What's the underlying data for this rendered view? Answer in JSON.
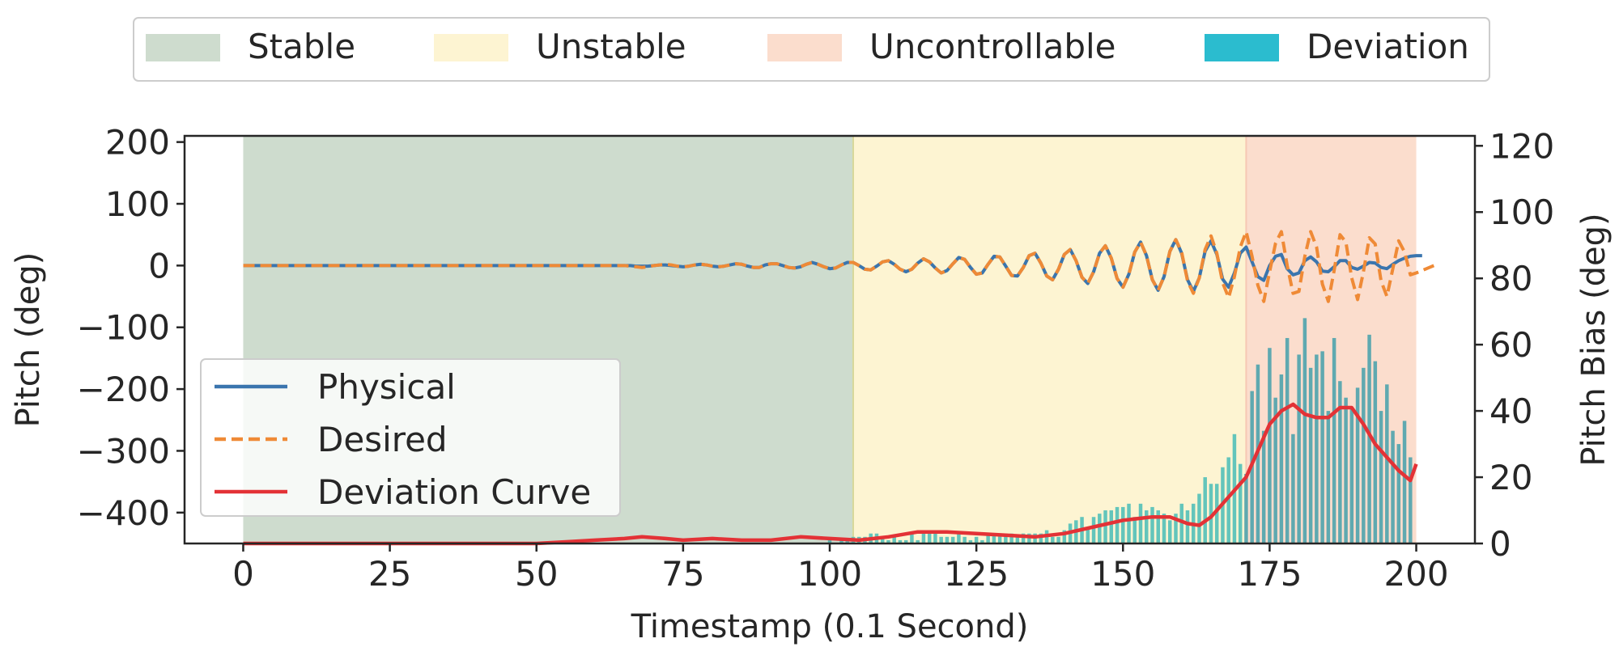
{
  "legend_top": {
    "items": [
      {
        "label": "Stable",
        "color": "#cedcce"
      },
      {
        "label": "Unstable",
        "color": "#fdf4d2"
      },
      {
        "label": "Uncontrollable",
        "color": "#fbddcd"
      },
      {
        "label": "Deviation",
        "color": "#2bbccf"
      }
    ]
  },
  "legend_lines": {
    "items": [
      {
        "label": "Physical",
        "color": "#3a75ae",
        "style": "solid"
      },
      {
        "label": "Desired",
        "color": "#ef8a36",
        "style": "dashed"
      },
      {
        "label": "Deviation Curve",
        "color": "#e33236",
        "style": "solid"
      }
    ]
  },
  "chart_data": {
    "type": "line",
    "xlabel": "Timestamp (0.1 Second)",
    "ylabel": "Pitch (deg)",
    "y2label": "Pitch Bias (deg)",
    "xlim": [
      -10,
      210
    ],
    "ylim": [
      -450,
      210
    ],
    "y2lim": [
      0,
      123
    ],
    "xticks": [
      0,
      25,
      50,
      75,
      100,
      125,
      150,
      175,
      200
    ],
    "xtick_labels": [
      "0",
      "25",
      "50",
      "75",
      "100",
      "125",
      "150",
      "175",
      "200"
    ],
    "yticks": [
      200,
      100,
      0,
      -100,
      -200,
      -300,
      -400
    ],
    "ytick_labels": [
      "200",
      "100",
      "0",
      "−100",
      "−200",
      "−300",
      "−400"
    ],
    "y2ticks": [
      0,
      20,
      40,
      60,
      80,
      100,
      120
    ],
    "y2tick_labels": [
      "0",
      "20",
      "40",
      "60",
      "80",
      "100",
      "120"
    ],
    "regions": [
      {
        "name": "Stable",
        "x": [
          0,
          104
        ],
        "color": "#cedcce"
      },
      {
        "name": "Unstable",
        "x": [
          104,
          171
        ],
        "color": "#fdf4d2"
      },
      {
        "name": "Uncontrollable",
        "x": [
          171,
          200
        ],
        "color": "#fbddcd"
      }
    ],
    "deviation_bars": {
      "name": "Deviation",
      "color": "#2bbccf",
      "axis": "right",
      "x_start": 100,
      "values": [
        1,
        0,
        1,
        1,
        2,
        2,
        2,
        3,
        3,
        2,
        1,
        2,
        1,
        1,
        3,
        1,
        4,
        3,
        3,
        2,
        2,
        2,
        3,
        2,
        1,
        2,
        1,
        3,
        3,
        3,
        3,
        3,
        2,
        3,
        3,
        3,
        3,
        4,
        2,
        2,
        4,
        6,
        7,
        8,
        5,
        8,
        9,
        10,
        10,
        11,
        11,
        12,
        8,
        12,
        10,
        11,
        10,
        9,
        7,
        9,
        12,
        10,
        12,
        15,
        20,
        18,
        18,
        23,
        26,
        33,
        24,
        21,
        46,
        54,
        34,
        59,
        44,
        51,
        62,
        33,
        57,
        68,
        53,
        57,
        58,
        40,
        62,
        49,
        44,
        41,
        47,
        53,
        63,
        55,
        40,
        48,
        34,
        30,
        37,
        26
      ]
    },
    "series": [
      {
        "name": "Physical",
        "axis": "left",
        "color": "#3a75ae",
        "x_start": 0,
        "values": [
          0,
          0,
          0,
          0,
          0,
          0,
          0,
          0,
          0,
          0,
          0,
          0,
          0,
          0,
          0,
          0,
          0,
          0,
          0,
          0,
          0,
          0,
          0,
          0,
          0,
          0,
          0,
          0,
          0,
          0,
          0,
          0,
          0,
          0,
          0,
          0,
          0,
          0,
          0,
          0,
          0,
          0,
          0,
          0,
          0,
          0,
          0,
          0,
          0,
          0,
          0,
          0,
          0,
          0,
          0,
          0,
          0,
          0,
          0,
          0,
          0,
          0,
          0,
          0,
          0,
          0,
          0,
          -1,
          -1,
          -1,
          0,
          1,
          1,
          0,
          -1,
          -2,
          -1,
          1,
          2,
          1,
          -1,
          -2,
          -1,
          1,
          3,
          2,
          -1,
          -3,
          -3,
          1,
          3,
          3,
          0,
          -3,
          -4,
          -2,
          2,
          5,
          2,
          -2,
          -5,
          -4,
          1,
          5,
          5,
          0,
          -6,
          -7,
          -1,
          6,
          8,
          2,
          -6,
          -10,
          -6,
          4,
          11,
          6,
          -4,
          -12,
          -8,
          3,
          13,
          10,
          -3,
          -14,
          -12,
          2,
          15,
          14,
          -1,
          -16,
          -17,
          -3,
          16,
          20,
          4,
          -17,
          -23,
          -6,
          18,
          26,
          8,
          -19,
          -29,
          -10,
          20,
          32,
          12,
          -21,
          -35,
          -14,
          22,
          38,
          16,
          -23,
          -40,
          -18,
          23,
          42,
          20,
          -23,
          -42,
          -20,
          23,
          40,
          18,
          -22,
          -35,
          -12,
          20,
          30,
          6,
          -18,
          -24,
          0,
          15,
          18,
          -5,
          -15,
          -12,
          8,
          14,
          6,
          -9,
          -10,
          -2,
          8,
          8,
          -3,
          -6,
          -1,
          5,
          4,
          -3,
          -5,
          2,
          8,
          12,
          15,
          16,
          16
        ]
      },
      {
        "name": "Desired",
        "axis": "left",
        "color": "#ef8a36",
        "x_start": 0,
        "values": [
          0,
          0,
          0,
          0,
          0,
          0,
          0,
          0,
          0,
          0,
          0,
          0,
          0,
          0,
          0,
          0,
          0,
          0,
          0,
          0,
          0,
          0,
          0,
          0,
          0,
          0,
          0,
          0,
          0,
          0,
          0,
          0,
          0,
          0,
          0,
          0,
          0,
          0,
          0,
          0,
          0,
          0,
          0,
          0,
          0,
          0,
          0,
          0,
          0,
          0,
          0,
          0,
          0,
          0,
          0,
          0,
          0,
          0,
          0,
          0,
          0,
          0,
          0,
          0,
          0,
          0,
          -1,
          -2,
          -3,
          -2,
          0,
          1,
          2,
          1,
          -1,
          -2,
          -1,
          1,
          2,
          1,
          -1,
          -2,
          -1,
          1,
          3,
          2,
          -1,
          -3,
          -3,
          1,
          3,
          3,
          0,
          -3,
          -4,
          -2,
          2,
          5,
          2,
          -2,
          -5,
          -4,
          1,
          5,
          5,
          0,
          -6,
          -7,
          -1,
          6,
          8,
          2,
          -6,
          -10,
          -6,
          4,
          11,
          6,
          -4,
          -12,
          -8,
          3,
          13,
          10,
          -3,
          -14,
          -12,
          2,
          15,
          14,
          -1,
          -16,
          -17,
          -3,
          16,
          20,
          4,
          -17,
          -23,
          -6,
          18,
          26,
          8,
          -19,
          -29,
          -10,
          20,
          32,
          12,
          -21,
          -35,
          -14,
          22,
          38,
          16,
          -23,
          -40,
          -18,
          23,
          42,
          22,
          -25,
          -45,
          -20,
          26,
          48,
          20,
          -28,
          -52,
          -18,
          30,
          55,
          15,
          -32,
          -58,
          -10,
          36,
          55,
          0,
          -45,
          -42,
          15,
          55,
          30,
          -30,
          -58,
          -8,
          50,
          38,
          -20,
          -55,
          -10,
          45,
          35,
          -25,
          -50,
          -5,
          40,
          22,
          -15,
          -12,
          -8,
          -4,
          0
        ]
      }
    ],
    "deviation_curve": {
      "name": "Deviation Curve",
      "axis": "right",
      "color": "#e33236",
      "points": [
        [
          0,
          0
        ],
        [
          50,
          0
        ],
        [
          55,
          0.5
        ],
        [
          60,
          1
        ],
        [
          65,
          1.5
        ],
        [
          68,
          2
        ],
        [
          72,
          1.5
        ],
        [
          75,
          1
        ],
        [
          80,
          1.5
        ],
        [
          85,
          1
        ],
        [
          90,
          1
        ],
        [
          95,
          2
        ],
        [
          100,
          1.5
        ],
        [
          105,
          1
        ],
        [
          110,
          2
        ],
        [
          115,
          3.5
        ],
        [
          120,
          3.5
        ],
        [
          125,
          3
        ],
        [
          130,
          2.5
        ],
        [
          135,
          2
        ],
        [
          140,
          3
        ],
        [
          145,
          5
        ],
        [
          150,
          7
        ],
        [
          155,
          8
        ],
        [
          158,
          8
        ],
        [
          161,
          6
        ],
        [
          163,
          5.5
        ],
        [
          165,
          8
        ],
        [
          167,
          12
        ],
        [
          169,
          16
        ],
        [
          171,
          20
        ],
        [
          173,
          28
        ],
        [
          175,
          36
        ],
        [
          177,
          40
        ],
        [
          179,
          42
        ],
        [
          181,
          39
        ],
        [
          183,
          38
        ],
        [
          185,
          38
        ],
        [
          187,
          41
        ],
        [
          189,
          41
        ],
        [
          191,
          36
        ],
        [
          193,
          30
        ],
        [
          195,
          26
        ],
        [
          197,
          22
        ],
        [
          199,
          19
        ],
        [
          200,
          24
        ]
      ]
    }
  }
}
